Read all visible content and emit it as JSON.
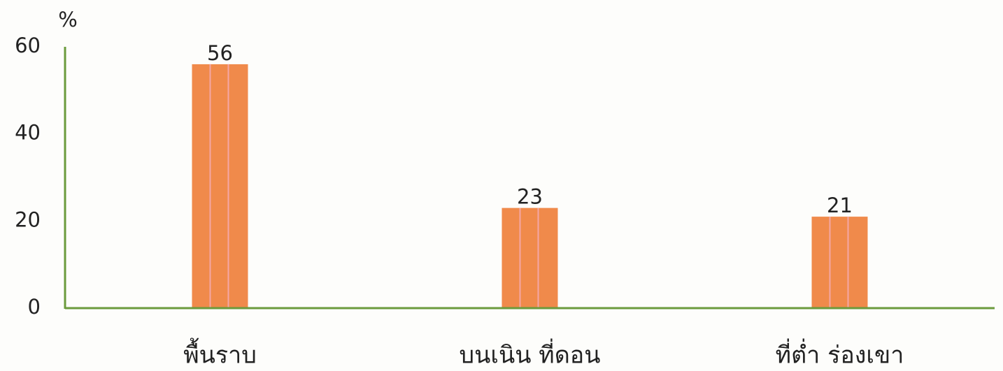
{
  "chart_data": {
    "type": "bar",
    "y_label": "%",
    "categories": [
      "พื้นราบ",
      "บนเนิน ที่ดอน",
      "ที่ต่ำ ร่องเขา"
    ],
    "values": [
      56,
      23,
      21
    ],
    "color": "#f08a4b",
    "ylim": [
      0,
      60
    ],
    "yticks": [
      0,
      20,
      40,
      60
    ],
    "grid": false
  }
}
